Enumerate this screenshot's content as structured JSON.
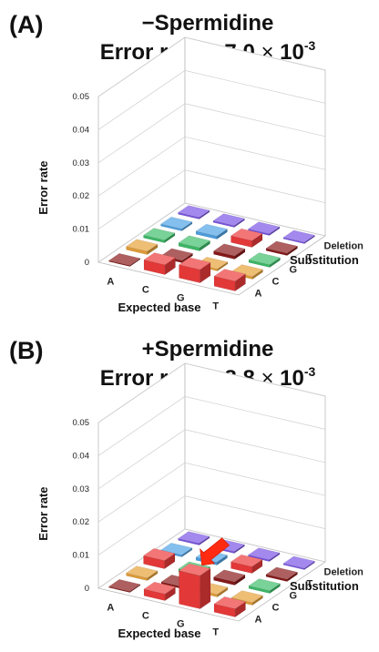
{
  "colors": {
    "A": "#8B1a1a",
    "C": "#e8a23a",
    "G": "#3fbf6a",
    "T": "#4fa3e6",
    "Deletion": "#7b55e6",
    "Highlight": "#ee3b3b",
    "Arrow": "#ff2a10"
  },
  "chart_data": [
    {
      "type": "bar3d",
      "panel_label": "(A)",
      "title": "−Spermidine",
      "subtitle_prefix": "Error rate = 7.0",
      "subtitle_times": "×",
      "subtitle_base": "10",
      "subtitle_exp": "-3",
      "zlabel": "Error rate",
      "xlabel": "Expected base",
      "ylabel": "Substitution",
      "x_categories": [
        "A",
        "C",
        "G",
        "T"
      ],
      "y_categories": [
        "A",
        "C",
        "G",
        "T",
        "Deletion"
      ],
      "zlim": [
        0,
        0.05
      ],
      "z_ticks": [
        "0",
        "0.01",
        "0.02",
        "0.03",
        "0.04",
        "0.05"
      ],
      "values": [
        [
          0.0003,
          0.001,
          0.0008,
          0.0006,
          0.0005
        ],
        [
          0.003,
          0.0007,
          0.001,
          0.0009,
          0.0005
        ],
        [
          0.004,
          0.0006,
          0.001,
          0.002,
          0.0005
        ],
        [
          0.003,
          0.0008,
          0.0008,
          0.0007,
          0.0004
        ]
      ],
      "arrow": false
    },
    {
      "type": "bar3d",
      "panel_label": "(B)",
      "title": "+Spermidine",
      "subtitle_prefix": "Error rate = 8.8",
      "subtitle_times": "×",
      "subtitle_base": "10",
      "subtitle_exp": "-3",
      "zlabel": "Error rate",
      "xlabel": "Expected base",
      "ylabel": "Substitution",
      "x_categories": [
        "A",
        "C",
        "G",
        "T"
      ],
      "y_categories": [
        "A",
        "C",
        "G",
        "T",
        "Deletion"
      ],
      "zlim": [
        0,
        0.05
      ],
      "z_ticks": [
        "0",
        "0.01",
        "0.02",
        "0.03",
        "0.04",
        "0.05"
      ],
      "values": [
        [
          0.0003,
          0.0008,
          0.0025,
          0.0006,
          0.0005
        ],
        [
          0.002,
          0.0006,
          0.001,
          0.0009,
          0.0005
        ],
        [
          0.01,
          0.0008,
          0.001,
          0.002,
          0.0005
        ],
        [
          0.0025,
          0.0008,
          0.0008,
          0.0007,
          0.0004
        ]
      ],
      "arrow": true
    }
  ]
}
